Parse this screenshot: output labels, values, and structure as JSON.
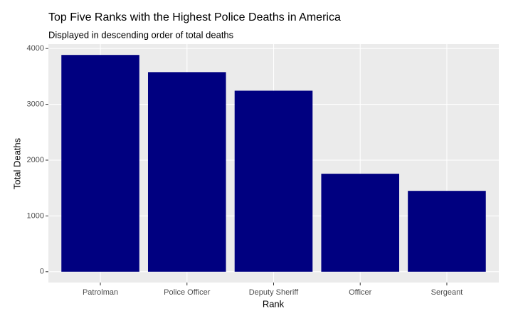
{
  "chart_data": {
    "type": "bar",
    "title": "Top Five Ranks with the Highest Police Deaths in America",
    "subtitle": "Displayed in descending order of total deaths",
    "x_label": "Rank",
    "y_label": "Total Deaths",
    "categories": [
      "Patrolman",
      "Police Officer",
      "Deputy Sheriff",
      "Officer",
      "Sergeant"
    ],
    "values": [
      3885,
      3577,
      3244,
      1756,
      1449
    ],
    "color": "#000080",
    "ylim": [
      -194,
      4079
    ],
    "yticks": [
      0,
      1000,
      2000,
      3000,
      4000
    ],
    "grid": true
  }
}
